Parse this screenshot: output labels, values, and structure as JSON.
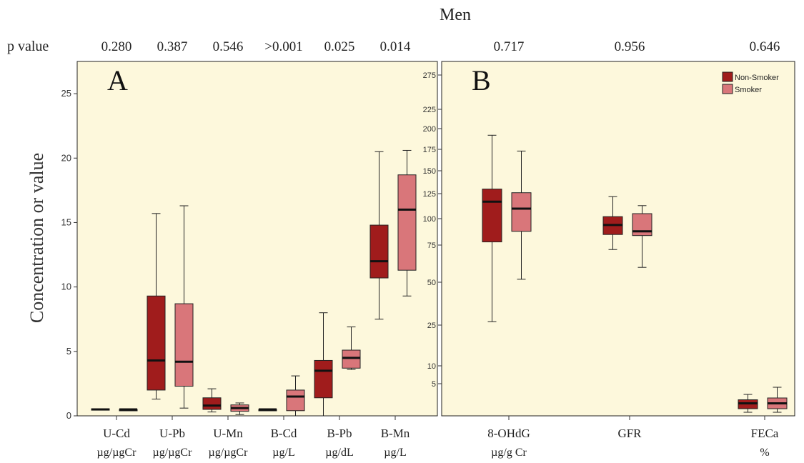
{
  "figure": {
    "title": "Men",
    "pvalue_label": "p value",
    "ylabel": "Concentration or value"
  },
  "chart_data": [
    {
      "type": "box",
      "panel": "A",
      "ylim": [
        0,
        27.5
      ],
      "yticks": [
        0,
        5,
        10,
        15,
        20,
        25
      ],
      "grid": false,
      "legend": "none",
      "groups": [
        {
          "label": [
            "U-Cd",
            "µg/µgCr"
          ],
          "p": "0.280",
          "boxes": [
            {
              "series": "Non-Smoker",
              "min": 0.45,
              "q1": 0.45,
              "median": 0.5,
              "q3": 0.55,
              "max": 0.55
            },
            {
              "series": "Smoker",
              "min": 0.45,
              "q1": 0.45,
              "median": 0.5,
              "q3": 0.5,
              "max": 0.5
            }
          ]
        },
        {
          "label": [
            "U-Pb",
            "µg/µgCr"
          ],
          "p": "0.387",
          "boxes": [
            {
              "series": "Non-Smoker",
              "min": 1.3,
              "q1": 2.0,
              "median": 4.3,
              "q3": 9.3,
              "max": 15.7
            },
            {
              "series": "Smoker",
              "min": 0.6,
              "q1": 2.3,
              "median": 4.2,
              "q3": 8.7,
              "max": 16.3
            }
          ]
        },
        {
          "label": [
            "U-Mn",
            "µg/µgCr"
          ],
          "p": "0.546",
          "boxes": [
            {
              "series": "Non-Smoker",
              "min": 0.3,
              "q1": 0.5,
              "median": 0.8,
              "q3": 1.4,
              "max": 2.1
            },
            {
              "series": "Smoker",
              "min": 0.1,
              "q1": 0.35,
              "median": 0.6,
              "q3": 0.85,
              "max": 1.0
            }
          ]
        },
        {
          "label": [
            "B-Cd",
            "µg/L"
          ],
          "p": ">0.001",
          "boxes": [
            {
              "series": "Non-Smoker",
              "min": 0.45,
              "q1": 0.45,
              "median": 0.5,
              "q3": 0.5,
              "max": 0.5
            },
            {
              "series": "Smoker",
              "min": 0.0,
              "q1": 0.4,
              "median": 1.5,
              "q3": 2.0,
              "max": 3.1
            }
          ]
        },
        {
          "label": [
            "B-Pb",
            "µg/dL"
          ],
          "p": "0.025",
          "boxes": [
            {
              "series": "Non-Smoker",
              "min": 0.0,
              "q1": 1.4,
              "median": 3.5,
              "q3": 4.3,
              "max": 8.0
            },
            {
              "series": "Smoker",
              "min": 3.6,
              "q1": 3.7,
              "median": 4.5,
              "q3": 5.1,
              "max": 6.9
            }
          ]
        },
        {
          "label": [
            "B-Mn",
            "µg/L"
          ],
          "p": "0.014",
          "boxes": [
            {
              "series": "Non-Smoker",
              "min": 7.5,
              "q1": 10.7,
              "median": 12.0,
              "q3": 14.8,
              "max": 20.5
            },
            {
              "series": "Smoker",
              "min": 9.3,
              "q1": 11.3,
              "median": 16.0,
              "q3": 18.7,
              "max": 20.6
            }
          ]
        }
      ]
    },
    {
      "type": "box",
      "panel": "B",
      "ylim": [
        -4,
        290
      ],
      "yticks": [
        5,
        10,
        25,
        50,
        75,
        100,
        125,
        150,
        175,
        200,
        225,
        275
      ],
      "grid": false,
      "legend": "top-right",
      "series": [
        {
          "name": "Non-Smoker",
          "color": "#a01c1c"
        },
        {
          "name": "Smoker",
          "color": "#d9767a"
        }
      ],
      "groups": [
        {
          "label": [
            "8-OHdG",
            "µg/g  Cr"
          ],
          "p": "0.717",
          "boxes": [
            {
              "series": "Non-Smoker",
              "min": 27,
              "q1": 78,
              "median": 117,
              "q3": 130,
              "max": 192
            },
            {
              "series": "Smoker",
              "min": 52,
              "q1": 88,
              "median": 110,
              "q3": 126,
              "max": 173
            }
          ]
        },
        {
          "label": [
            "GFR",
            ""
          ],
          "p": "0.956",
          "boxes": [
            {
              "series": "Non-Smoker",
              "min": 72,
              "q1": 85,
              "median": 94,
              "q3": 102,
              "max": 122
            },
            {
              "series": "Smoker",
              "min": 60,
              "q1": 84,
              "median": 88,
              "q3": 105,
              "max": 113
            }
          ]
        },
        {
          "label": [
            "FECa",
            "%"
          ],
          "p": "0.646",
          "boxes": [
            {
              "series": "Non-Smoker",
              "min": -3,
              "q1": -2,
              "median": -0.5,
              "q3": 0.5,
              "max": 2
            },
            {
              "series": "Smoker",
              "min": -3,
              "q1": -2,
              "median": -0.5,
              "q3": 1,
              "max": 4
            }
          ]
        }
      ]
    }
  ],
  "colors": {
    "non_smoker": "#a01c1c",
    "smoker": "#d9767a",
    "plot_bg": "#fdf8dc"
  }
}
